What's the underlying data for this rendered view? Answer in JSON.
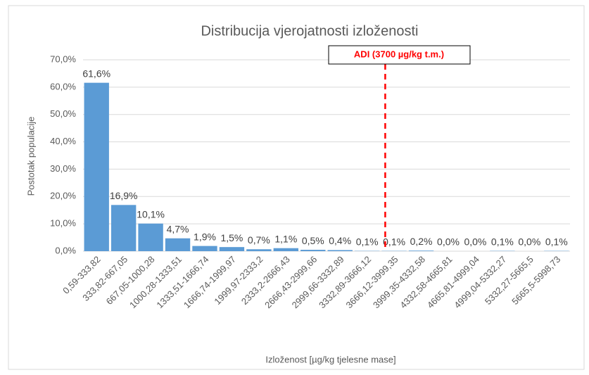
{
  "chart_data": {
    "type": "bar",
    "title": "Distribucija vjerojatnosti izloženosti",
    "x_label": "Izloženost [µg/kg tjelesne mase]",
    "y_label": "Postotak populacije",
    "annotation": "ADI (3700 µg/kg t.m.)",
    "categories": [
      "0,59-333,82",
      "333,82-667,05",
      "667,05-1000,28",
      "1000,28-1333,51",
      "1333,51-1666,74",
      "1666,74-1999,97",
      "1999,97-2333,2",
      "2333,2-2666,43",
      "2666,43-2999,66",
      "2999,66-3332,89",
      "3332,89-3666,12",
      "3666,12-3999,35",
      "3999,35-4332,58",
      "4332,58-4665,81",
      "4665,81-4999,04",
      "4999,04-5332,27",
      "5332,27-5665,5",
      "5665,5-5998,73"
    ],
    "values": [
      61.6,
      16.9,
      10.1,
      4.7,
      1.9,
      1.5,
      0.7,
      1.1,
      0.5,
      0.4,
      0.1,
      0.1,
      0.2,
      0.0,
      0.0,
      0.1,
      0.0,
      0.1
    ],
    "value_labels": [
      "61,6%",
      "16,9%",
      "10,1%",
      "4,7%",
      "1,9%",
      "1,5%",
      "0,7%",
      "1,1%",
      "0,5%",
      "0,4%",
      "0,1%",
      "0,1%",
      "0,2%",
      "0,0%",
      "0,0%",
      "0,1%",
      "0,0%",
      "0,1%"
    ],
    "color": "#5b9bd5",
    "ylim": [
      0,
      70
    ],
    "yticks": [
      {
        "value": 0,
        "label": "0,0%"
      },
      {
        "value": 10,
        "label": "10,0%"
      },
      {
        "value": 20,
        "label": "20,0%"
      },
      {
        "value": 30,
        "label": "30,0%"
      },
      {
        "value": 40,
        "label": "40,0%"
      },
      {
        "value": 50,
        "label": "50,0%"
      },
      {
        "value": 60,
        "label": "60,0%"
      },
      {
        "value": 70,
        "label": "70,0%"
      }
    ],
    "grid": true
  }
}
